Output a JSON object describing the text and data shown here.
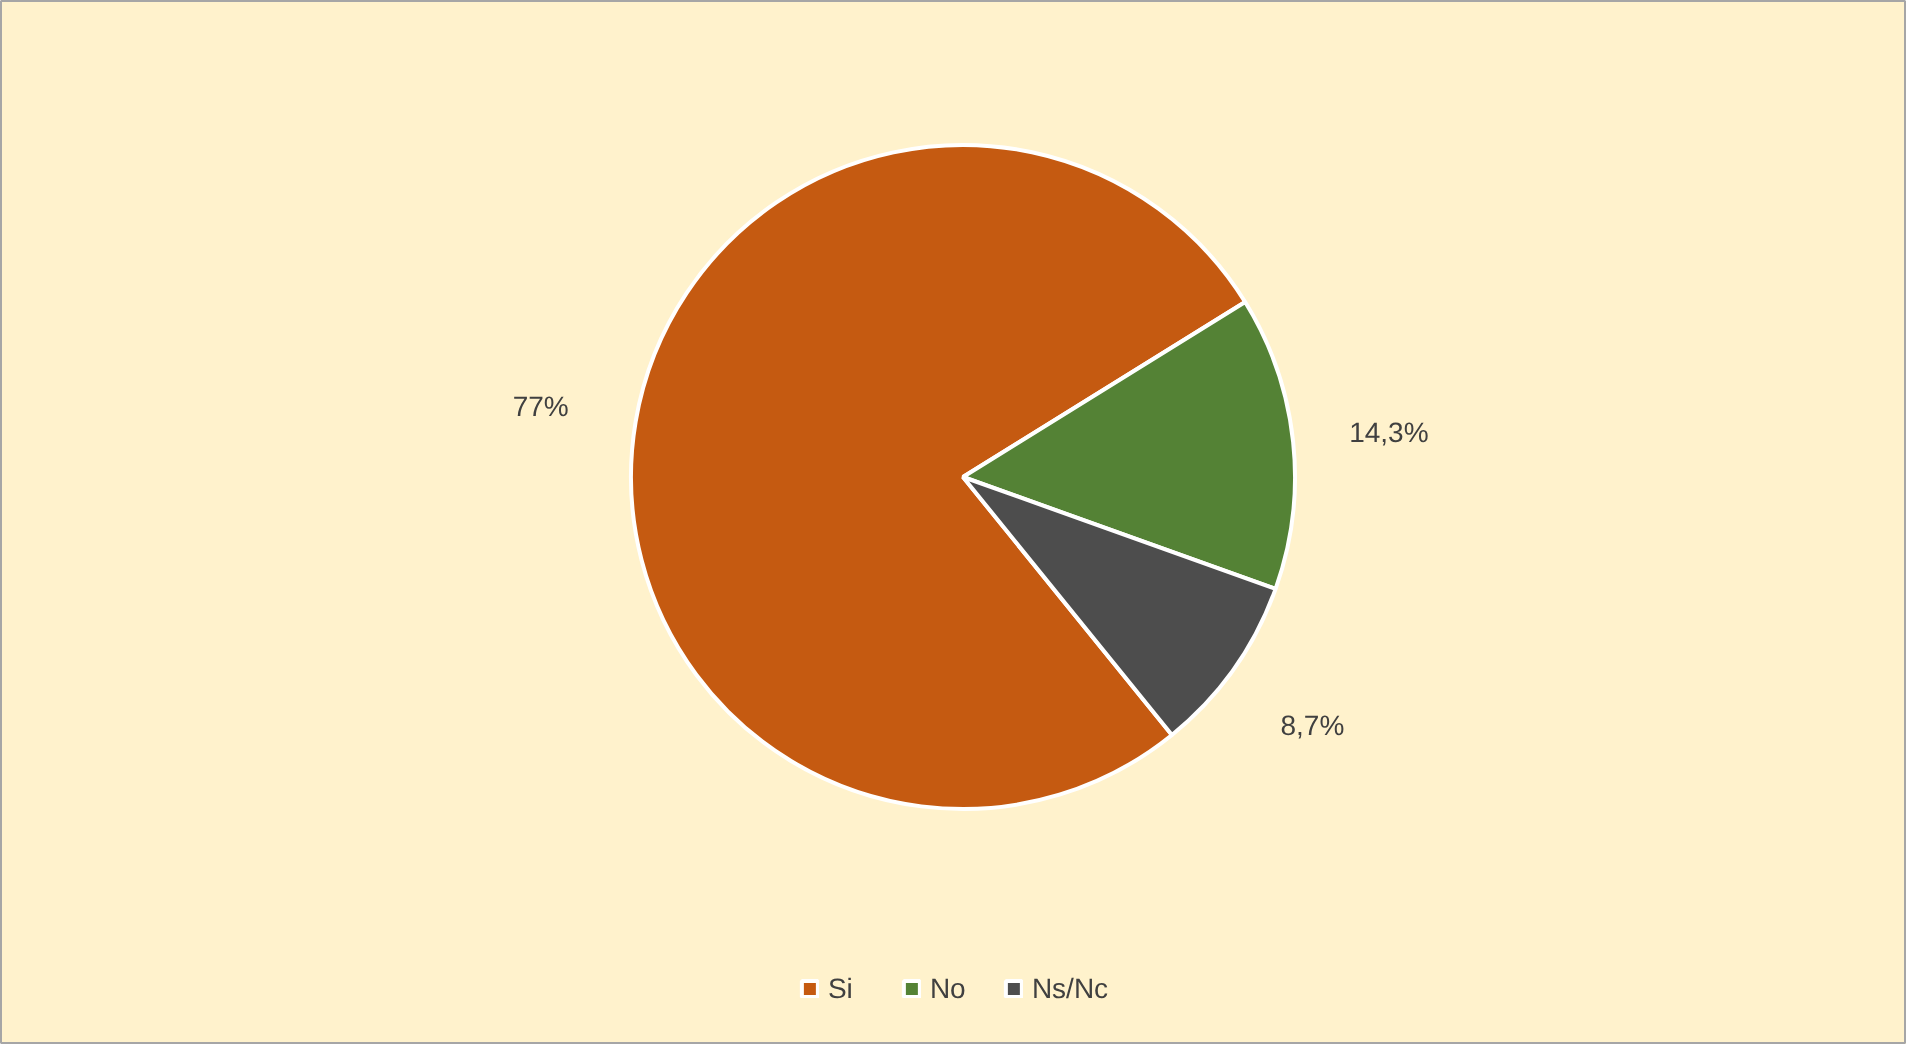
{
  "chart_data": {
    "type": "pie",
    "categories": [
      "Si",
      "No",
      "Ns/Nc"
    ],
    "values": [
      77,
      14.3,
      8.7
    ],
    "colors": [
      "#c55a11",
      "#548235",
      "#4d4d4d"
    ],
    "value_labels": [
      "77%",
      "14,3%",
      "8,7%"
    ],
    "legend": "bottom"
  }
}
